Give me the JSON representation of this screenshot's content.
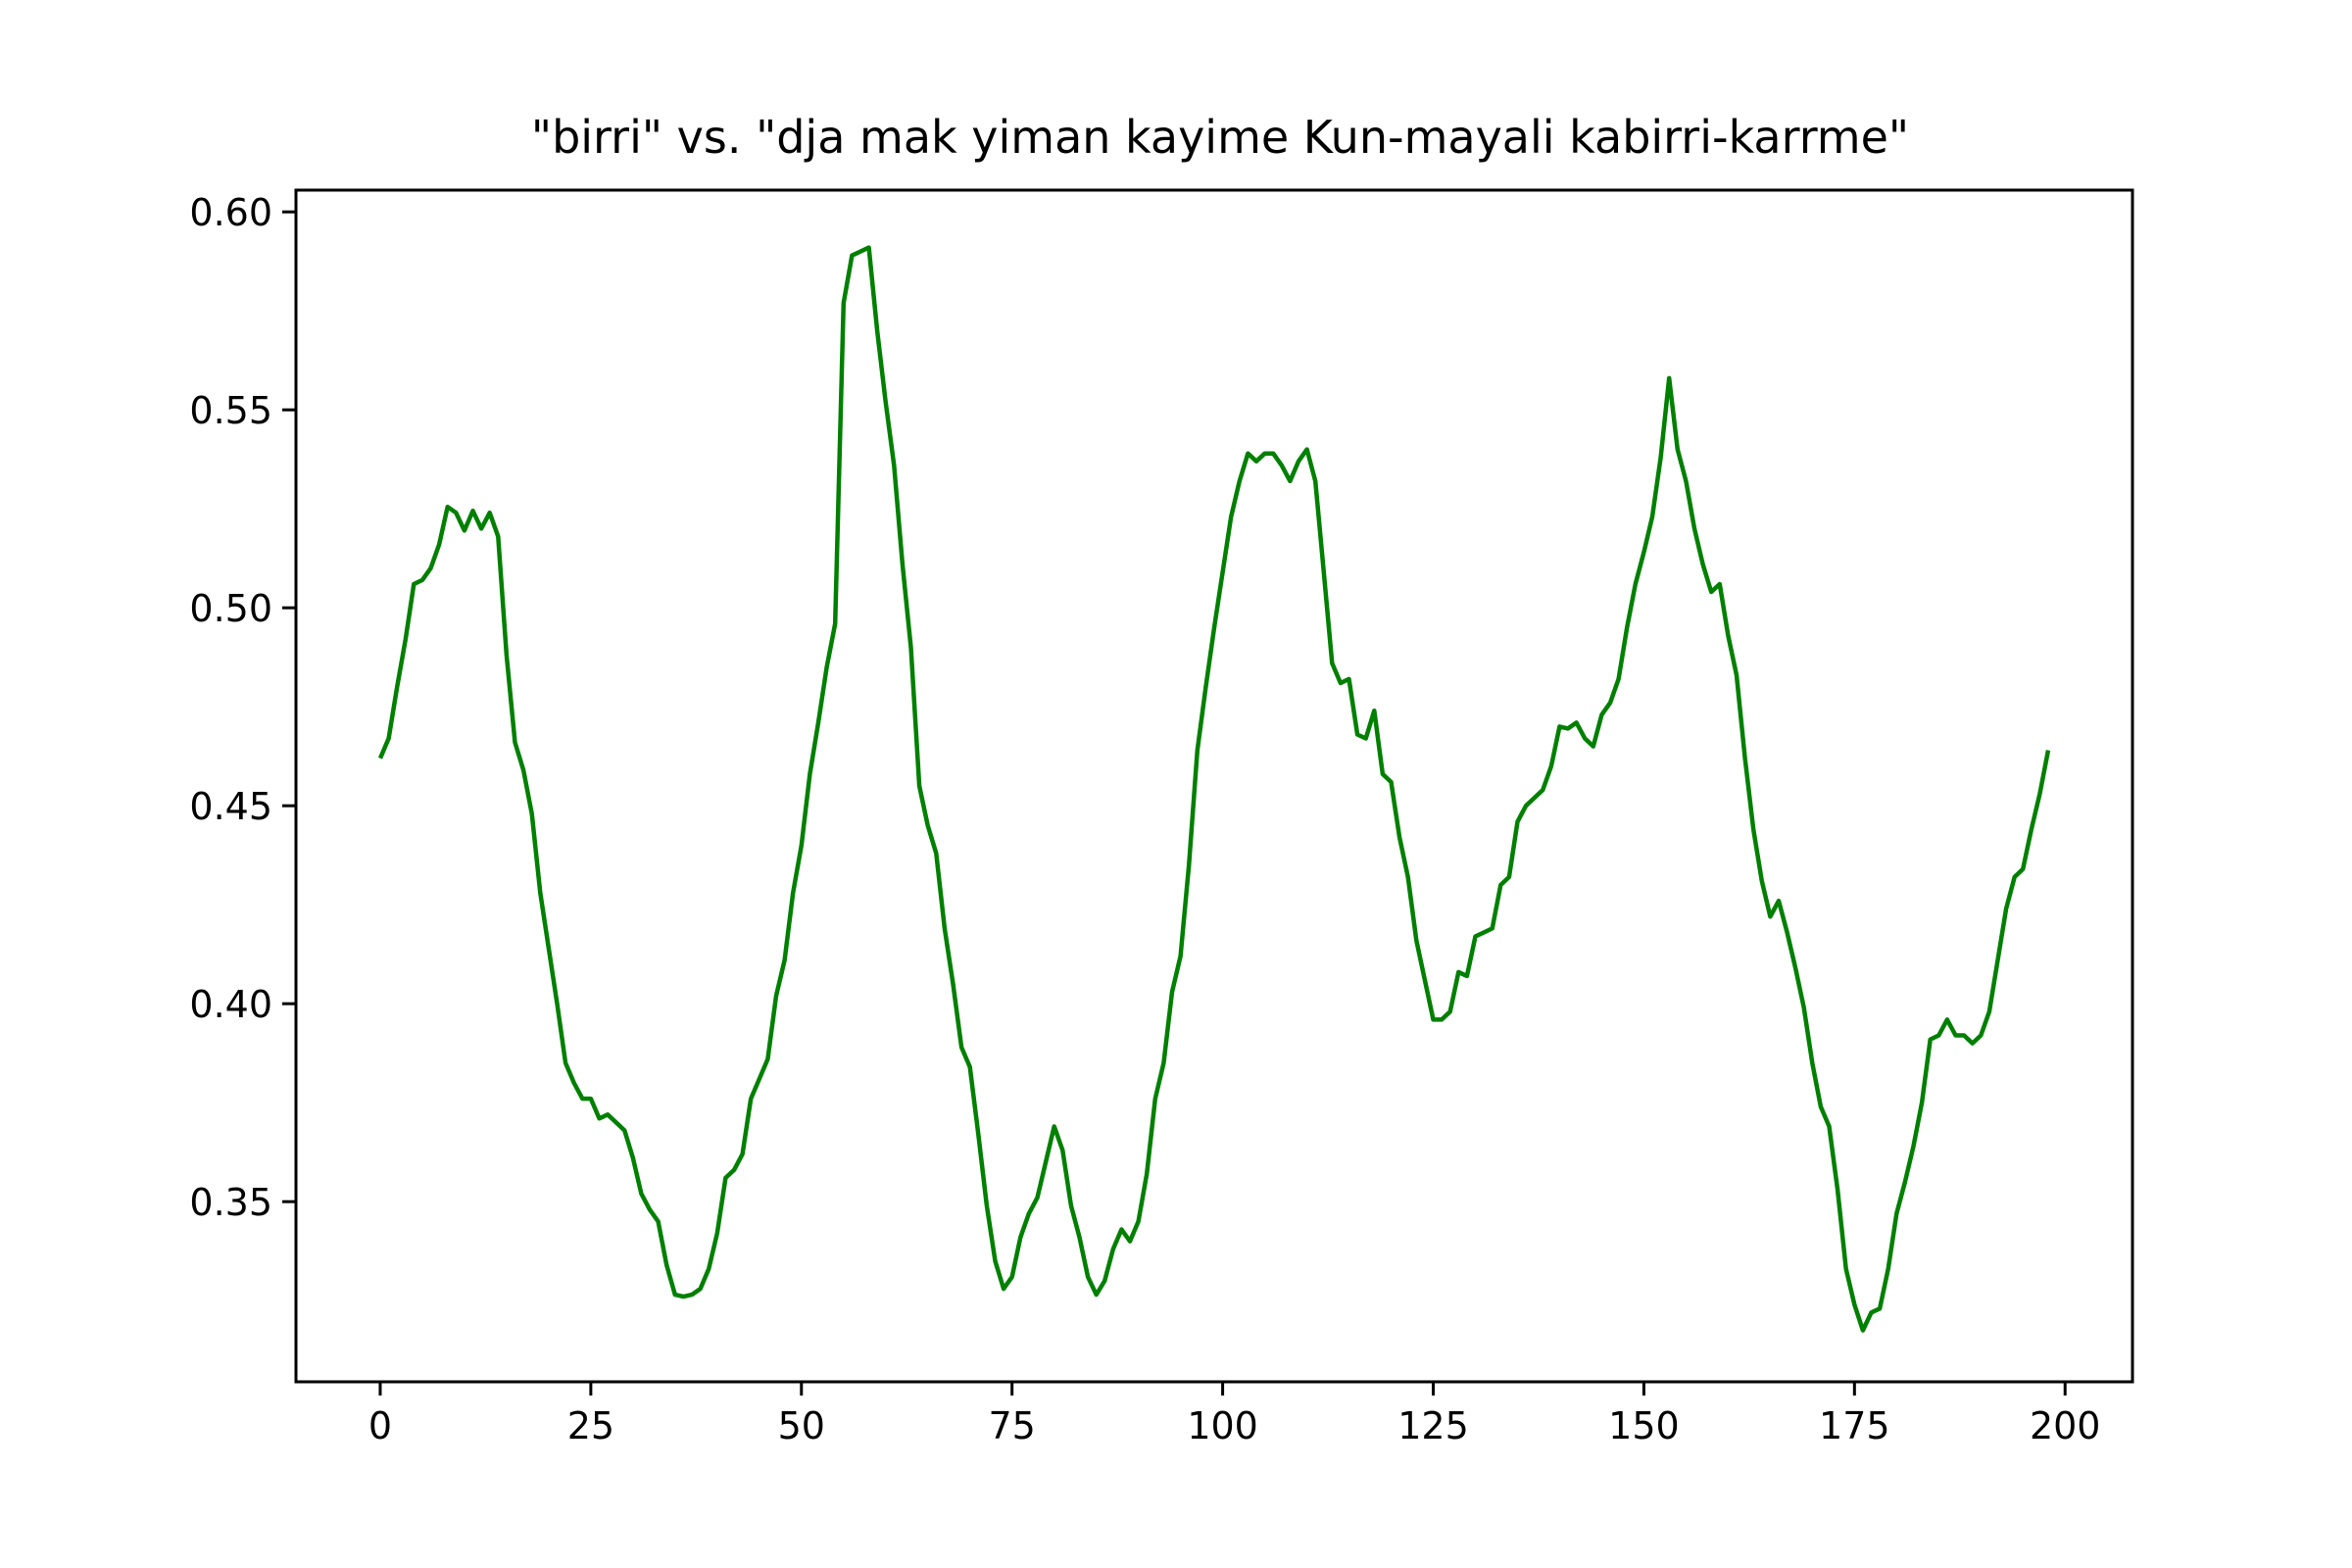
{
  "chart_data": {
    "type": "line",
    "title": "\"birri\" vs. \"dja mak yiman kayime Kun-mayali kabirri-karrme\"",
    "xlabel": "",
    "ylabel": "",
    "xlim": [
      -10,
      208
    ],
    "ylim": [
      0.3045,
      0.6055
    ],
    "grid": false,
    "x_ticks": [
      0,
      25,
      50,
      75,
      100,
      125,
      150,
      175,
      200
    ],
    "y_ticks": [
      0.35,
      0.4,
      0.45,
      0.5,
      0.55,
      0.6
    ],
    "x_tick_labels": [
      "0",
      "25",
      "50",
      "75",
      "100",
      "125",
      "150",
      "175",
      "200"
    ],
    "y_tick_labels": [
      "0.35",
      "0.40",
      "0.45",
      "0.50",
      "0.55",
      "0.60"
    ],
    "series": [
      {
        "color": "#008000",
        "x_start": 0,
        "x_step": 1,
        "values": [
          0.462,
          0.467,
          0.48,
          0.492,
          0.506,
          0.507,
          0.51,
          0.516,
          0.5255,
          0.524,
          0.5195,
          0.5245,
          0.52,
          0.524,
          0.518,
          0.488,
          0.466,
          0.459,
          0.448,
          0.428,
          0.414,
          0.4,
          0.385,
          0.38,
          0.376,
          0.376,
          0.371,
          0.372,
          0.37,
          0.368,
          0.361,
          0.352,
          0.348,
          0.345,
          0.334,
          0.3265,
          0.326,
          0.3265,
          0.328,
          0.333,
          0.342,
          0.356,
          0.358,
          0.362,
          0.376,
          0.381,
          0.386,
          0.402,
          0.411,
          0.428,
          0.44,
          0.458,
          0.471,
          0.485,
          0.496,
          0.577,
          0.589,
          0.59,
          0.591,
          0.57,
          0.552,
          0.536,
          0.511,
          0.49,
          0.455,
          0.445,
          0.438,
          0.419,
          0.405,
          0.389,
          0.384,
          0.367,
          0.349,
          0.335,
          0.328,
          0.331,
          0.341,
          0.347,
          0.351,
          0.36,
          0.369,
          0.363,
          0.349,
          0.341,
          0.331,
          0.3265,
          0.33,
          0.338,
          0.343,
          0.34,
          0.345,
          0.357,
          0.376,
          0.385,
          0.403,
          0.412,
          0.435,
          0.464,
          0.48,
          0.495,
          0.509,
          0.523,
          0.532,
          0.539,
          0.537,
          0.539,
          0.539,
          0.536,
          0.532,
          0.537,
          0.54,
          0.532,
          0.509,
          0.486,
          0.481,
          0.482,
          0.468,
          0.467,
          0.474,
          0.458,
          0.456,
          0.442,
          0.432,
          0.416,
          0.406,
          0.396,
          0.396,
          0.398,
          0.408,
          0.407,
          0.417,
          0.418,
          0.419,
          0.43,
          0.432,
          0.446,
          0.45,
          0.452,
          0.454,
          0.46,
          0.47,
          0.4695,
          0.471,
          0.467,
          0.465,
          0.473,
          0.476,
          0.482,
          0.495,
          0.506,
          0.514,
          0.523,
          0.538,
          0.558,
          0.54,
          0.532,
          0.52,
          0.511,
          0.504,
          0.506,
          0.493,
          0.483,
          0.462,
          0.444,
          0.431,
          0.422,
          0.426,
          0.418,
          0.409,
          0.399,
          0.385,
          0.374,
          0.369,
          0.353,
          0.333,
          0.324,
          0.3175,
          0.322,
          0.323,
          0.333,
          0.347,
          0.355,
          0.364,
          0.375,
          0.391,
          0.392,
          0.396,
          0.392,
          0.392,
          0.39,
          0.392,
          0.398,
          0.411,
          0.424,
          0.432,
          0.434,
          0.444,
          0.453,
          0.464
        ]
      }
    ]
  }
}
